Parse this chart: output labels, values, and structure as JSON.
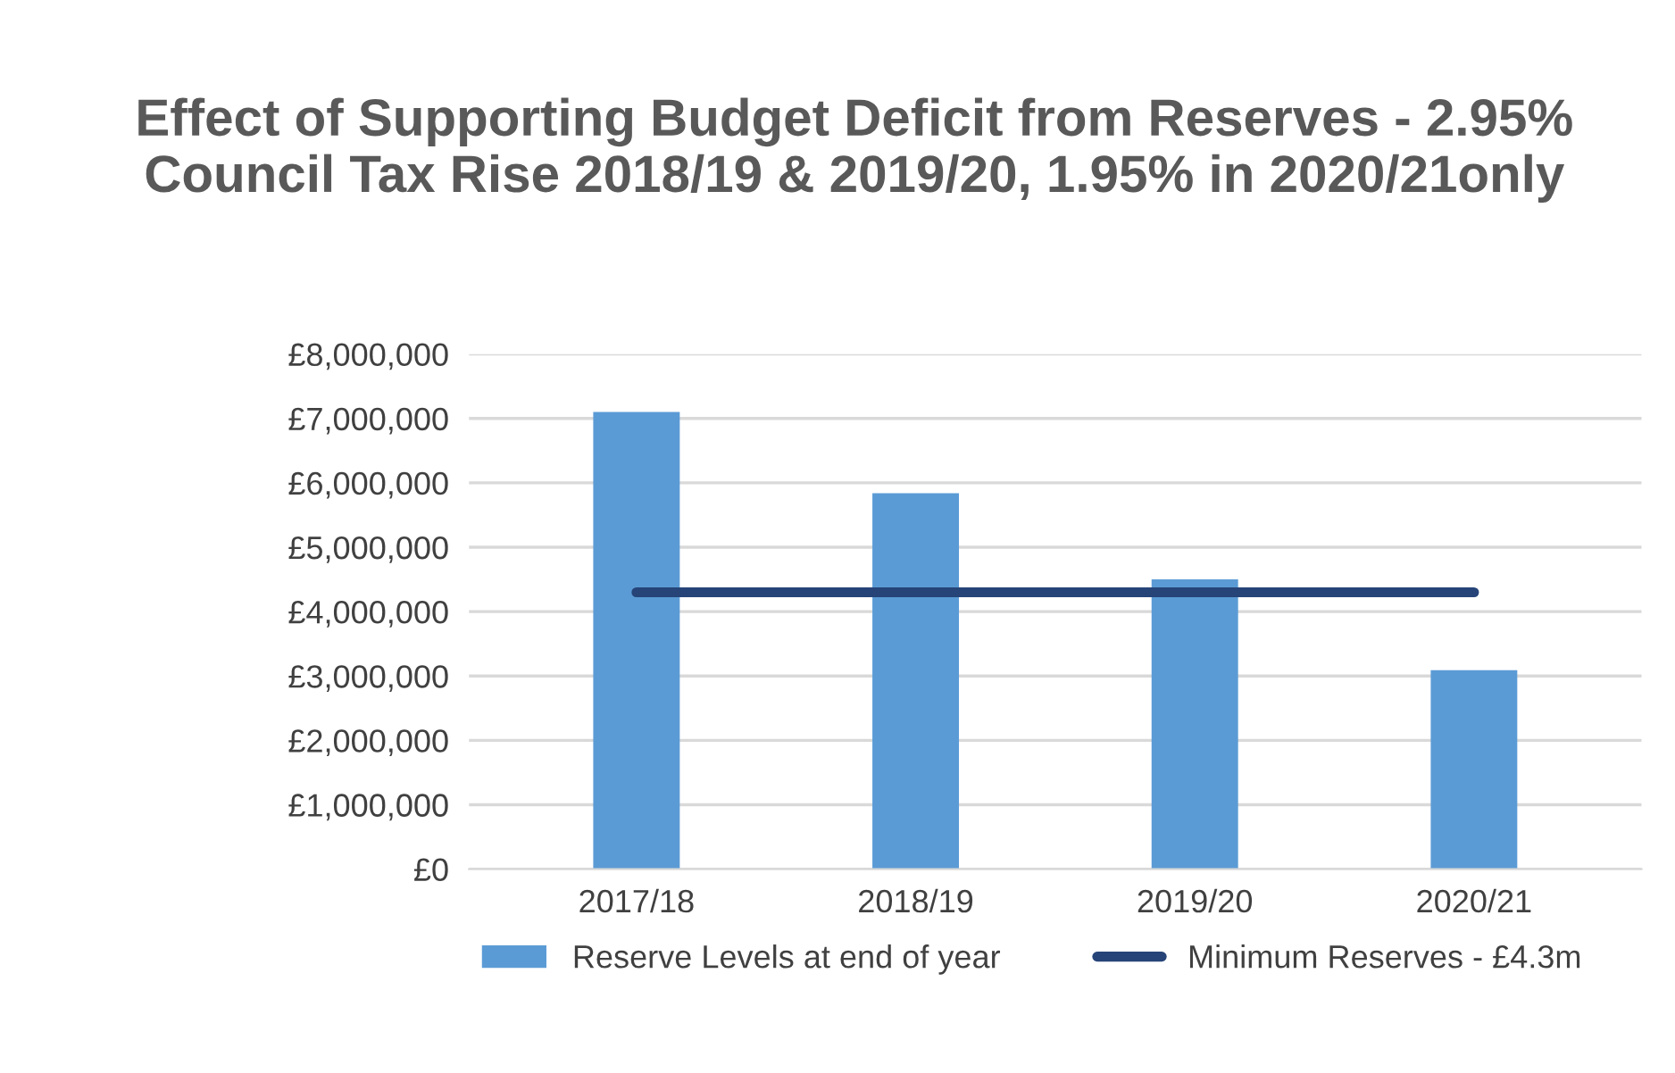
{
  "chart_data": {
    "type": "bar",
    "title": "Effect of Supporting Budget Deficit from Reserves - 2.95% Council Tax Rise 2018/19 & 2019/20, 1.95% in 2020/21only",
    "categories": [
      "2017/18",
      "2018/19",
      "2019/20",
      "2020/21"
    ],
    "series": [
      {
        "name": "Reserve Levels at end of year",
        "color": "#5b9bd5",
        "values": [
          7100000,
          5840000,
          4500000,
          3090000
        ]
      },
      {
        "name": "Minimum Reserves - £4.3m",
        "type": "line",
        "color": "#264478",
        "values": [
          4300000,
          4300000,
          4300000,
          4300000
        ]
      }
    ],
    "ylim": [
      0,
      8000000
    ],
    "yticks": [
      {
        "value": 0,
        "label": "£0"
      },
      {
        "value": 1000000,
        "label": "£1,000,000"
      },
      {
        "value": 2000000,
        "label": "£2,000,000"
      },
      {
        "value": 3000000,
        "label": "£3,000,000"
      },
      {
        "value": 4000000,
        "label": "£4,000,000"
      },
      {
        "value": 5000000,
        "label": "£5,000,000"
      },
      {
        "value": 6000000,
        "label": "£6,000,000"
      },
      {
        "value": 7000000,
        "label": "£7,000,000"
      },
      {
        "value": 8000000,
        "label": "£8,000,000"
      }
    ],
    "grid": "y",
    "legend": "bottom"
  }
}
